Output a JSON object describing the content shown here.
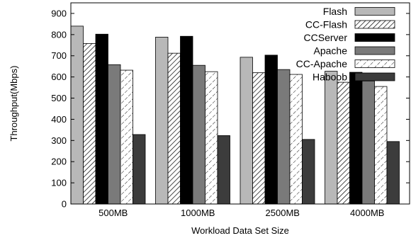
{
  "chart_data": {
    "type": "bar",
    "xlabel": "Workload Data Set Size",
    "ylabel": "Throughput(Mbps)",
    "ylim": [
      0,
      950
    ],
    "yticks": [
      0,
      100,
      200,
      300,
      400,
      500,
      600,
      700,
      800,
      900
    ],
    "categories": [
      "500MB",
      "1000MB",
      "2500MB",
      "4000MB"
    ],
    "legend_position": "top-right",
    "grid": false,
    "series": [
      {
        "name": "Flash",
        "values": [
          840,
          788,
          693,
          627
        ],
        "fill": "#b8b8b8",
        "pattern": "solid"
      },
      {
        "name": "CC-Flash",
        "values": [
          758,
          712,
          620,
          575
        ],
        "fill": "#ffffff",
        "pattern": "dense-diagonal"
      },
      {
        "name": "CCServer",
        "values": [
          802,
          792,
          703,
          622
        ],
        "fill": "#000000",
        "pattern": "solid"
      },
      {
        "name": "Apache",
        "values": [
          658,
          655,
          635,
          581
        ],
        "fill": "#7a7a7a",
        "pattern": "solid"
      },
      {
        "name": "CC-Apache",
        "values": [
          632,
          625,
          612,
          555
        ],
        "fill": "#ffffff",
        "pattern": "sparse-diagonal"
      },
      {
        "name": "Haboob",
        "values": [
          328,
          323,
          305,
          295
        ],
        "fill": "#3c3c3c",
        "pattern": "solid"
      }
    ]
  }
}
